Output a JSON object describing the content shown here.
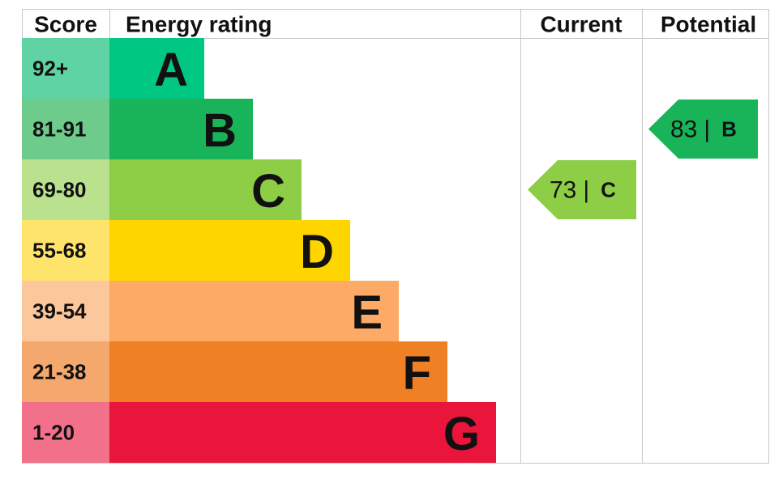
{
  "header": {
    "score": "Score",
    "rating": "Energy rating",
    "current": "Current",
    "potential": "Potential"
  },
  "bands": [
    {
      "score": "92+",
      "letter": "A",
      "color": "#00c781",
      "score_color": "#5fd3a4"
    },
    {
      "score": "81-91",
      "letter": "B",
      "color": "#19b459",
      "score_color": "#6dcc8c"
    },
    {
      "score": "69-80",
      "letter": "C",
      "color": "#8dce46",
      "score_color": "#b9e18e"
    },
    {
      "score": "55-68",
      "letter": "D",
      "color": "#ffd500",
      "score_color": "#ffe46b"
    },
    {
      "score": "39-54",
      "letter": "E",
      "color": "#fcaa65",
      "score_color": "#fdc79c"
    },
    {
      "score": "21-38",
      "letter": "F",
      "color": "#ef8023",
      "score_color": "#f4a86d"
    },
    {
      "score": "1-20",
      "letter": "G",
      "color": "#e9153b",
      "score_color": "#f27089"
    }
  ],
  "current": {
    "value": 73,
    "separator": "|",
    "letter": "C"
  },
  "potential": {
    "value": 83,
    "separator": "|",
    "letter": "B"
  }
}
